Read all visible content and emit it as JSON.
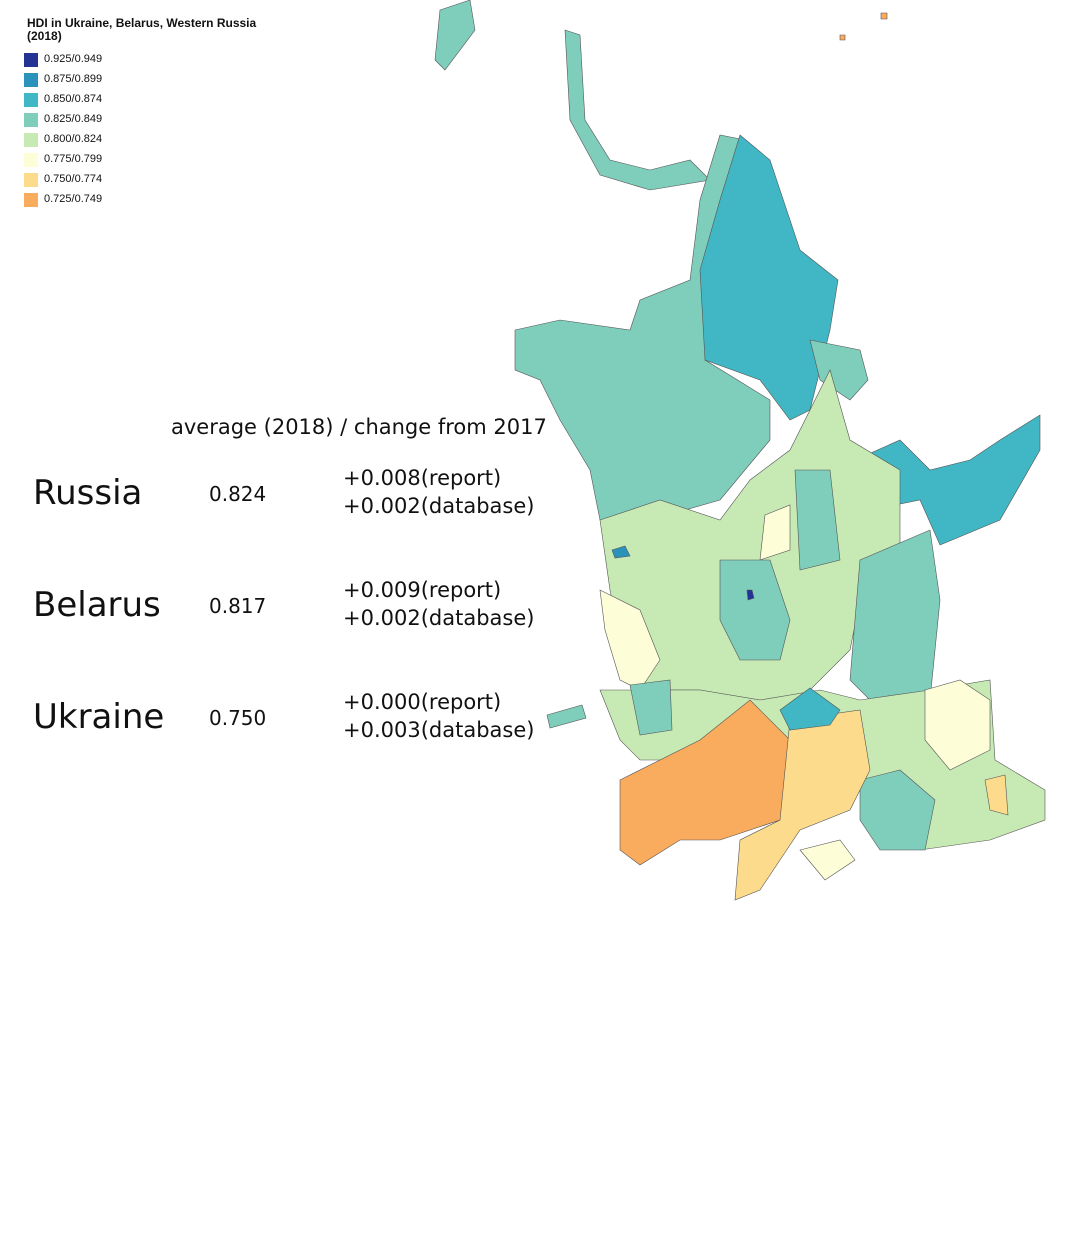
{
  "title": "HDI in Ukraine, Belarus, Western Russia (2018)",
  "legend": [
    {
      "label": "0.925/0.949",
      "color": "#253494"
    },
    {
      "label": "0.875/0.899",
      "color": "#2a93ba"
    },
    {
      "label": "0.850/0.874",
      "color": "#41b6c4"
    },
    {
      "label": "0.825/0.849",
      "color": "#7fcdbb"
    },
    {
      "label": "0.800/0.824",
      "color": "#c7e9b4"
    },
    {
      "label": "0.775/0.799",
      "color": "#fdfdd8"
    },
    {
      "label": "0.750/0.774",
      "color": "#fcdc8c"
    },
    {
      "label": "0.725/0.749",
      "color": "#f9ab5e"
    }
  ],
  "table": {
    "header": "average (2018) / change from 2017",
    "rows": [
      {
        "country": "Russia",
        "average": "0.824",
        "report": "+0.008(report)",
        "database": "+0.002(database)"
      },
      {
        "country": "Belarus",
        "average": "0.817",
        "report": "+0.009(report)",
        "database": "+0.002(database)"
      },
      {
        "country": "Ukraine",
        "average": "0.750",
        "report": "+0.000(report)",
        "database": "+0.003(database)"
      }
    ]
  }
}
